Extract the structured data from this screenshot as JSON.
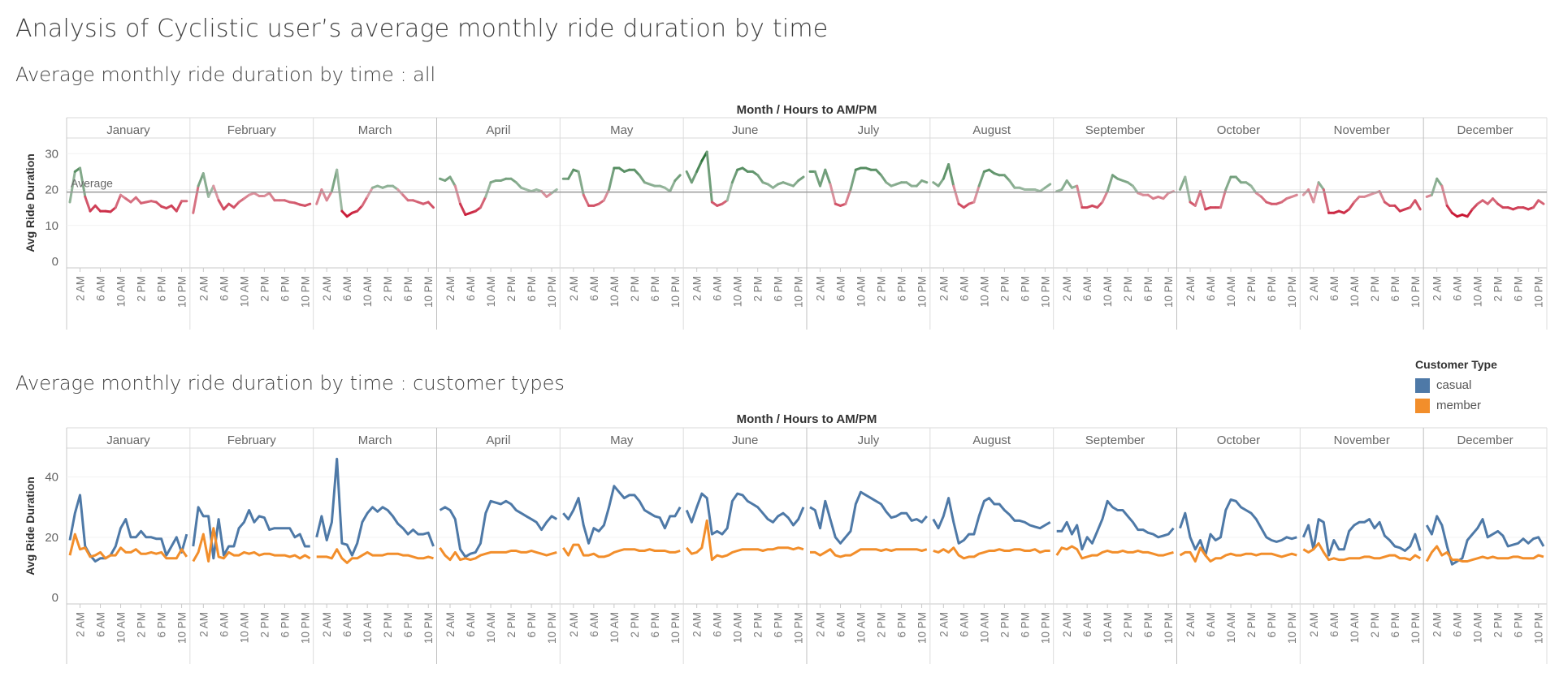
{
  "page_title": "Analysis of  Cyclistic user’s average monthly ride duration by time",
  "legend": {
    "title": "Customer Type",
    "items": [
      {
        "label": "casual",
        "color": "#4e79a7"
      },
      {
        "label": "member",
        "color": "#f28e2b"
      }
    ]
  },
  "chart_data": [
    {
      "type": "line",
      "title": "Average monthly ride duration by time : all",
      "column_header": "Month / Hours to AM/PM",
      "ylabel": "Avg Ride Duration",
      "ylim": [
        0,
        33
      ],
      "yticks": [
        0,
        10,
        20,
        30
      ],
      "reference_line": {
        "label": "Average",
        "value": 19.3
      },
      "color_scale": {
        "low": "#c8102e",
        "mid": "#e8e8e8",
        "high": "#1e6b2e"
      },
      "months": [
        "January",
        "February",
        "March",
        "April",
        "May",
        "June",
        "July",
        "August",
        "September",
        "October",
        "November",
        "December"
      ],
      "x_tick_labels": [
        "2 AM",
        "6 AM",
        "10 AM",
        "2 PM",
        "6 PM",
        "10 PM"
      ],
      "hours": [
        0,
        1,
        2,
        3,
        4,
        5,
        6,
        7,
        8,
        9,
        10,
        11,
        12,
        13,
        14,
        15,
        16,
        17,
        18,
        19,
        20,
        21,
        22,
        23
      ],
      "series": [
        {
          "values": {
            "January": [
              16.5,
              25,
              26,
              18,
              14,
              15.5,
              14,
              14,
              13.8,
              15,
              18.5,
              17.5,
              16.5,
              17.8,
              16.2,
              16.5,
              16.8,
              16.5,
              15.3,
              14.8,
              15.5,
              14,
              16.8,
              16.8
            ]
          },
          "February_placeholder": null
        }
      ],
      "values_by_month": {
        "January": [
          16.5,
          25,
          26,
          18,
          14,
          15.5,
          14,
          14,
          13.8,
          15,
          18.5,
          17.5,
          16.5,
          17.8,
          16.2,
          16.5,
          16.8,
          16.5,
          15.3,
          14.8,
          15.5,
          14,
          16.8,
          16.8
        ],
        "February": [
          13.5,
          21,
          24.5,
          18,
          21,
          17,
          14.5,
          16,
          15,
          16.5,
          17.5,
          18.5,
          19,
          18.2,
          18.2,
          19,
          17,
          17,
          17,
          16.5,
          16.3,
          15.8,
          15.5,
          16
        ],
        "March": [
          16,
          20,
          17,
          19.5,
          25.5,
          14,
          12.5,
          13.5,
          14,
          15.5,
          18,
          20.5,
          21,
          20.5,
          21,
          21,
          20,
          18.5,
          17,
          17,
          16.5,
          16,
          16.5,
          15
        ],
        "April": [
          23,
          22.5,
          23.5,
          21,
          16,
          13,
          13.5,
          14,
          15,
          18,
          22,
          22.5,
          22.5,
          23,
          23,
          22,
          20.5,
          20,
          19.5,
          20,
          19.5,
          18,
          19,
          20
        ],
        "May": [
          23,
          23,
          25.5,
          25,
          18.5,
          15.5,
          15.5,
          16,
          17,
          20,
          26,
          26,
          25,
          25.5,
          25.5,
          24,
          22,
          21.5,
          21,
          21,
          20.5,
          19.5,
          22.5,
          24
        ],
        "June": [
          25,
          22,
          25,
          28,
          30.5,
          16.5,
          15.5,
          16,
          17,
          22,
          25.5,
          26,
          25,
          25,
          24,
          22,
          21.5,
          20.5,
          21.5,
          22,
          21.5,
          21,
          22.5,
          23.5
        ],
        "July": [
          25,
          25,
          21,
          25.5,
          21.5,
          16,
          15.5,
          16,
          20,
          25.5,
          26,
          26,
          25.5,
          25.5,
          24,
          22,
          21,
          21.5,
          22,
          22,
          21,
          21,
          22.5,
          22
        ],
        "August": [
          22,
          21,
          23,
          27,
          21,
          16,
          15,
          16,
          16.5,
          21,
          25,
          25.5,
          24.5,
          24,
          24,
          22.5,
          20.5,
          20.5,
          20,
          20,
          20,
          19.5,
          20.5,
          21.5
        ],
        "September": [
          19.5,
          20,
          22.5,
          20.5,
          21,
          15,
          15,
          15.5,
          15,
          16.5,
          19.5,
          24,
          23,
          22.5,
          22,
          21,
          19,
          18.5,
          18.5,
          17.5,
          18,
          17.5,
          19,
          19.5
        ],
        "October": [
          20,
          23.5,
          16.5,
          15.5,
          19.5,
          14.5,
          15,
          15,
          15,
          20,
          23.5,
          23.5,
          22,
          22,
          21,
          19,
          18,
          16.5,
          16,
          16,
          16.5,
          17.5,
          18,
          18.5
        ],
        "November": [
          18.5,
          20,
          16.5,
          22,
          20,
          13.5,
          13.5,
          14,
          13.5,
          14.5,
          16.5,
          18,
          18,
          18.5,
          19,
          19.5,
          16.5,
          15.5,
          15.5,
          14,
          14.5,
          15,
          17,
          14.5
        ],
        "December": [
          18,
          18.5,
          23,
          21,
          15.5,
          13.5,
          12.5,
          13,
          12.5,
          14.5,
          16,
          17,
          16,
          17.5,
          16,
          15,
          15,
          14.5,
          15,
          15,
          14.5,
          15,
          17,
          16
        ]
      }
    },
    {
      "type": "line",
      "title": "Average monthly ride duration by time : customer types",
      "column_header": "Month / Hours to AM/PM",
      "ylabel": "Avg Ride Duration",
      "ylim": [
        0,
        48
      ],
      "yticks": [
        0,
        20,
        40
      ],
      "months": [
        "January",
        "February",
        "March",
        "April",
        "May",
        "June",
        "July",
        "August",
        "September",
        "October",
        "November",
        "December"
      ],
      "x_tick_labels": [
        "2 AM",
        "6 AM",
        "10 AM",
        "2 PM",
        "6 PM",
        "10 PM"
      ],
      "series": [
        {
          "name": "casual",
          "color": "#4e79a7",
          "values_by_month": {
            "January": [
              19,
              28,
              34,
              17,
              14,
              12,
              13,
              13,
              14,
              17,
              23,
              26,
              20,
              20,
              22,
              20,
              20,
              19.5,
              19.5,
              14,
              17,
              20,
              15,
              21
            ],
            "February": [
              17,
              30,
              27,
              27,
              13,
              26,
              14,
              17,
              17,
              23,
              25,
              29,
              25,
              27,
              26.5,
              22.5,
              23,
              23,
              23,
              23,
              20,
              21,
              17,
              17
            ],
            "March": [
              20,
              27,
              19,
              25,
              46,
              18,
              17.5,
              14,
              18,
              25,
              28,
              30,
              28.5,
              30,
              29,
              27,
              24.5,
              23,
              21,
              22.5,
              21,
              21,
              21.5,
              17
            ],
            "April": [
              29,
              30,
              29,
              26,
              16,
              13.5,
              14.5,
              15,
              18,
              28,
              32,
              31.5,
              31,
              32,
              31,
              29,
              28,
              27,
              26,
              25,
              22.5,
              25,
              27,
              26
            ],
            "May": [
              28,
              26,
              29,
              33,
              24,
              18,
              23,
              22,
              24,
              30,
              37,
              35,
              33,
              34,
              34,
              32,
              29,
              28,
              27,
              26.5,
              23,
              27,
              27,
              30
            ],
            "June": [
              29,
              25,
              30,
              34.5,
              33,
              21,
              22,
              21,
              23,
              32,
              34.5,
              34,
              32,
              31,
              30,
              28,
              26,
              25,
              27,
              28,
              26.5,
              24,
              26,
              30
            ],
            "July": [
              30,
              29,
              23,
              32,
              26,
              20,
              18,
              20,
              22,
              31,
              35,
              34,
              33,
              32,
              31,
              28.5,
              26.5,
              27,
              28,
              28,
              25.5,
              26,
              25,
              27
            ],
            "August": [
              26,
              23,
              27,
              33,
              25,
              18,
              19,
              21,
              21,
              27,
              32,
              33,
              31,
              31,
              29,
              27.5,
              25.5,
              25.5,
              25,
              24,
              23.5,
              23,
              24,
              25
            ],
            "September": [
              22,
              22,
              25,
              21,
              24,
              16,
              20,
              18,
              22,
              26,
              32,
              30,
              29,
              29,
              27,
              25,
              22.5,
              22.5,
              21.5,
              21,
              20,
              20.5,
              21,
              23
            ],
            "October": [
              23,
              28,
              20,
              16,
              19,
              14,
              21,
              19,
              20,
              29,
              32.5,
              32,
              30,
              29,
              28,
              26,
              23,
              20,
              19,
              18.5,
              19,
              20,
              19.5,
              20
            ],
            "November": [
              20,
              24,
              16,
              26,
              25,
              14,
              19,
              16,
              16,
              22,
              24,
              25,
              25,
              26,
              23,
              25,
              20.5,
              19,
              17,
              16.5,
              15.5,
              17,
              21,
              15.5
            ],
            "December": [
              24,
              21,
              27,
              24,
              17,
              11,
              12,
              13,
              19,
              21,
              23,
              26,
              20,
              21,
              22,
              20.5,
              17,
              17.5,
              18,
              19.5,
              18,
              19.5,
              20,
              17
            ]
          }
        },
        {
          "name": "member",
          "color": "#f28e2b",
          "values_by_month": {
            "January": [
              14,
              21,
              16,
              16.5,
              13.5,
              14,
              15,
              13,
              14,
              14,
              16.5,
              15,
              15,
              16,
              14.5,
              14.5,
              15,
              14.5,
              15,
              13,
              13,
              13,
              16,
              13.5
            ],
            "February": [
              12,
              15,
              21,
              12,
              23,
              13.5,
              13,
              15,
              14,
              14,
              15,
              14.5,
              15,
              14,
              14.5,
              14.5,
              14,
              14,
              14,
              13.5,
              14,
              13,
              14,
              13
            ],
            "March": [
              13.5,
              13.5,
              13.5,
              13,
              16,
              13,
              11.5,
              13,
              13,
              14,
              15,
              14,
              14,
              14,
              14.5,
              14.5,
              14.5,
              14,
              14,
              13.5,
              13,
              13,
              13.5,
              13
            ],
            "April": [
              16.5,
              14,
              12.5,
              15,
              12.5,
              13,
              12.5,
              13,
              14,
              14.5,
              15,
              15,
              15,
              15,
              15.5,
              15.5,
              15,
              15,
              15.5,
              15,
              14.5,
              14,
              14.5,
              15
            ],
            "May": [
              16.5,
              14,
              17.5,
              17.5,
              14,
              14,
              14.5,
              13.5,
              13.5,
              14,
              15,
              15.5,
              16,
              16,
              16,
              15.5,
              15.5,
              16,
              15.5,
              15.5,
              15.5,
              15,
              15,
              15.5
            ],
            "June": [
              16.5,
              14.5,
              15,
              16.5,
              25.5,
              12.5,
              14,
              13.5,
              14,
              15,
              15.5,
              16,
              16,
              16,
              16,
              15.5,
              16,
              16,
              16.5,
              16.5,
              16.5,
              16,
              16.5,
              16
            ],
            "July": [
              15,
              15,
              14,
              15,
              16,
              14,
              13.5,
              14,
              14,
              15,
              16,
              16,
              16,
              16,
              15.5,
              16,
              15.5,
              16,
              16,
              16,
              16,
              16,
              15.5,
              16
            ],
            "August": [
              15.5,
              15,
              16,
              15,
              16.5,
              14,
              13,
              13.5,
              13.5,
              14.5,
              15,
              15.5,
              15.5,
              16,
              15.5,
              15.5,
              16,
              16,
              15.5,
              15.5,
              16,
              15,
              15.5,
              15.5
            ],
            "September": [
              14,
              16.5,
              16,
              17,
              16,
              13,
              13.5,
              14,
              14,
              15,
              15.5,
              15,
              15,
              15.5,
              15,
              15,
              15.5,
              15,
              15,
              14.5,
              14,
              14,
              14.5,
              15
            ],
            "October": [
              14,
              15,
              15,
              12,
              16.5,
              14,
              12,
              13,
              13,
              14,
              14.5,
              14,
              14,
              14.5,
              14.5,
              14,
              14.5,
              14.5,
              14.5,
              14,
              13.5,
              14,
              14.5,
              14
            ],
            "November": [
              16,
              15,
              16,
              18,
              15,
              12.5,
              13,
              12.5,
              12.5,
              13,
              13,
              13,
              13.5,
              13.5,
              13,
              13,
              13.5,
              14,
              14,
              13,
              13,
              12.5,
              14,
              13
            ],
            "December": [
              12,
              15,
              17,
              14,
              15,
              12.5,
              12.5,
              12,
              12,
              12.5,
              13,
              13.5,
              13,
              13.5,
              13,
              13,
              13,
              13.5,
              13.5,
              13,
              13,
              13,
              14,
              13.5
            ]
          }
        }
      ]
    }
  ]
}
